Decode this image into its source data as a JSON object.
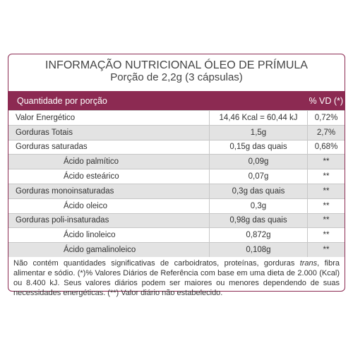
{
  "panel": {
    "title": "INFORMAÇÃO NUTRICIONAL ÓLEO DE PRÍMULA",
    "subtitle": "Porção de 2,2g (3 cápsulas)"
  },
  "table": {
    "headers": [
      "Quantidade por porção",
      "",
      "% VD (*)"
    ],
    "rows": [
      {
        "name": "Valor Energético",
        "amount": "14,46 Kcal = 60,44 kJ",
        "vd": "0,72%",
        "indent": false
      },
      {
        "name": "Gorduras Totais",
        "amount": "1,5g",
        "vd": "2,7%",
        "indent": false
      },
      {
        "name": "Gorduras saturadas",
        "amount": "0,15g das quais",
        "vd": "0,68%",
        "indent": false
      },
      {
        "name": "Ácido palmítico",
        "amount": "0,09g",
        "vd": "**",
        "indent": true
      },
      {
        "name": "Ácido esteárico",
        "amount": "0,07g",
        "vd": "**",
        "indent": true
      },
      {
        "name": "Gorduras monoinsaturadas",
        "amount": "0,3g das quais",
        "vd": "**",
        "indent": false
      },
      {
        "name": "Ácido oleico",
        "amount": "0,3g",
        "vd": "**",
        "indent": true
      },
      {
        "name": "Gorduras poli-insaturadas",
        "amount": "0,98g das quais",
        "vd": "**",
        "indent": false
      },
      {
        "name": "Ácido linoleico",
        "amount": "0,872g",
        "vd": "**",
        "indent": true
      },
      {
        "name": "Ácido gamalinoleico",
        "amount": "0,108g",
        "vd": "**",
        "indent": true
      }
    ]
  },
  "footnote": {
    "part1": "Não contém quantidades significativas de carboidratos, proteínas, gorduras ",
    "italic": "trans",
    "part2": ", fibra alimentar e sódio. (*)% Valores Diários de Referência com base em uma dieta de 2.000 (Kcal) ou 8.400 kJ. Seus valores diários podem ser maiores ou menores dependendo de suas necessidades energéticas. (**) Valor diário não estabelecido."
  },
  "colors": {
    "accent": "#8c2a52",
    "row_shade": "#e3e3e3",
    "border": "#c7c7c7"
  }
}
